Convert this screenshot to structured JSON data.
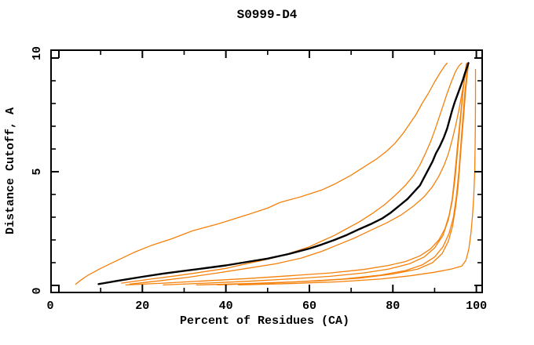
{
  "figure": {
    "background": "#ffffff"
  },
  "chart_data": {
    "type": "line",
    "title": "S0999-D4",
    "xlabel": "Percent of Residues (CA)",
    "ylabel": "Distance Cutoff, A",
    "xlim": [
      0,
      100
    ],
    "ylim": [
      0,
      10
    ],
    "grid": false,
    "legend": false,
    "x_axis": {
      "minor_ticks": [
        10,
        30,
        50,
        70,
        90
      ],
      "major_ticks": [
        0,
        20,
        40,
        60,
        80,
        100
      ],
      "tick_labels": [
        "0",
        "20",
        "40",
        "60",
        "80",
        "100"
      ]
    },
    "y_axis": {
      "minor_ticks": [
        1,
        2,
        3,
        4,
        6,
        7,
        8,
        9
      ],
      "major_ticks": [
        0,
        5,
        10
      ],
      "tick_labels": [
        "0",
        "5",
        "10"
      ]
    },
    "colors": {
      "highlight_curve": "#000000",
      "prediction_curve": "#F5800A"
    },
    "series": [
      {
        "name": "orange-curve-1",
        "color": "#F5800A",
        "width": 1.3,
        "points": [
          [
            4,
            0.05
          ],
          [
            5,
            0.2
          ],
          [
            7,
            0.45
          ],
          [
            10,
            0.75
          ],
          [
            14,
            1.1
          ],
          [
            18,
            1.45
          ],
          [
            22,
            1.75
          ],
          [
            27,
            2.05
          ],
          [
            32,
            2.4
          ],
          [
            38,
            2.7
          ],
          [
            45,
            3.1
          ],
          [
            50,
            3.4
          ],
          [
            53,
            3.65
          ],
          [
            58,
            3.9
          ],
          [
            63,
            4.2
          ],
          [
            66,
            4.45
          ],
          [
            70,
            4.85
          ],
          [
            73,
            5.2
          ],
          [
            76,
            5.55
          ],
          [
            78.5,
            5.9
          ],
          [
            80.5,
            6.25
          ],
          [
            82.5,
            6.7
          ],
          [
            84,
            7.1
          ],
          [
            85.5,
            7.5
          ],
          [
            87,
            8.0
          ],
          [
            88.5,
            8.45
          ],
          [
            90,
            8.95
          ],
          [
            91.3,
            9.35
          ],
          [
            92.4,
            9.65
          ],
          [
            93,
            9.78
          ]
        ]
      },
      {
        "name": "orange-curve-2",
        "color": "#F5800A",
        "width": 1.3,
        "points": [
          [
            15,
            0.1
          ],
          [
            22,
            0.28
          ],
          [
            28,
            0.42
          ],
          [
            34,
            0.58
          ],
          [
            40,
            0.75
          ],
          [
            45,
            0.95
          ],
          [
            50,
            1.15
          ],
          [
            55,
            1.4
          ],
          [
            60,
            1.7
          ],
          [
            63,
            1.95
          ],
          [
            66,
            2.2
          ],
          [
            69,
            2.5
          ],
          [
            72,
            2.8
          ],
          [
            75,
            3.15
          ],
          [
            78,
            3.55
          ],
          [
            80.5,
            3.95
          ],
          [
            83,
            4.4
          ],
          [
            85,
            4.85
          ],
          [
            86.5,
            5.3
          ],
          [
            87.8,
            5.8
          ],
          [
            89,
            6.3
          ],
          [
            90,
            6.8
          ],
          [
            91,
            7.35
          ],
          [
            92,
            7.9
          ],
          [
            93,
            8.45
          ],
          [
            94,
            8.95
          ],
          [
            95,
            9.4
          ],
          [
            95.8,
            9.65
          ],
          [
            96.5,
            9.78
          ]
        ]
      },
      {
        "name": "orange-curve-3",
        "color": "#F5800A",
        "width": 1.3,
        "points": [
          [
            17,
            0.06
          ],
          [
            24,
            0.2
          ],
          [
            31,
            0.36
          ],
          [
            38,
            0.55
          ],
          [
            45,
            0.75
          ],
          [
            52,
            0.95
          ],
          [
            58,
            1.2
          ],
          [
            63,
            1.5
          ],
          [
            67,
            1.8
          ],
          [
            71,
            2.1
          ],
          [
            75,
            2.45
          ],
          [
            78.5,
            2.75
          ],
          [
            82,
            3.1
          ],
          [
            85,
            3.5
          ],
          [
            87.5,
            3.9
          ],
          [
            89.5,
            4.35
          ],
          [
            91,
            4.8
          ],
          [
            92.3,
            5.3
          ],
          [
            93.3,
            5.8
          ],
          [
            94.2,
            6.4
          ],
          [
            95,
            7.0
          ],
          [
            95.8,
            7.7
          ],
          [
            96.5,
            8.4
          ],
          [
            97.2,
            9.1
          ],
          [
            97.8,
            9.6
          ],
          [
            98.1,
            9.78
          ]
        ]
      },
      {
        "name": "orange-curve-4",
        "color": "#F5800A",
        "width": 1.3,
        "points": [
          [
            16,
            0.02
          ],
          [
            25,
            0.1
          ],
          [
            35,
            0.2
          ],
          [
            45,
            0.3
          ],
          [
            55,
            0.42
          ],
          [
            65,
            0.55
          ],
          [
            73,
            0.7
          ],
          [
            79,
            0.88
          ],
          [
            83,
            1.05
          ],
          [
            86.5,
            1.3
          ],
          [
            89,
            1.6
          ],
          [
            91,
            2.0
          ],
          [
            92.5,
            2.5
          ],
          [
            93.5,
            3.1
          ],
          [
            94.2,
            3.8
          ],
          [
            94.7,
            4.6
          ],
          [
            95.1,
            5.4
          ],
          [
            95.5,
            6.2
          ],
          [
            96,
            7.1
          ],
          [
            96.5,
            8.0
          ],
          [
            97,
            8.9
          ],
          [
            97.5,
            9.6
          ],
          [
            97.7,
            9.78
          ]
        ]
      },
      {
        "name": "orange-curve-5",
        "color": "#F5800A",
        "width": 1.3,
        "points": [
          [
            25,
            0.02
          ],
          [
            35,
            0.1
          ],
          [
            45,
            0.18
          ],
          [
            55,
            0.28
          ],
          [
            65,
            0.4
          ],
          [
            73,
            0.55
          ],
          [
            79,
            0.72
          ],
          [
            84,
            0.95
          ],
          [
            87.5,
            1.25
          ],
          [
            90,
            1.65
          ],
          [
            92,
            2.2
          ],
          [
            93.3,
            2.9
          ],
          [
            94.2,
            3.7
          ],
          [
            94.9,
            4.7
          ],
          [
            95.4,
            5.7
          ],
          [
            95.9,
            6.7
          ],
          [
            96.4,
            7.7
          ],
          [
            96.9,
            8.7
          ],
          [
            97.4,
            9.5
          ],
          [
            97.6,
            9.75
          ]
        ]
      },
      {
        "name": "orange-curve-6",
        "color": "#F5800A",
        "width": 1.3,
        "points": [
          [
            33,
            0.02
          ],
          [
            45,
            0.08
          ],
          [
            57,
            0.16
          ],
          [
            68,
            0.28
          ],
          [
            77,
            0.45
          ],
          [
            83,
            0.65
          ],
          [
            87,
            0.9
          ],
          [
            90,
            1.25
          ],
          [
            92,
            1.7
          ],
          [
            93.5,
            2.3
          ],
          [
            94.5,
            3.0
          ],
          [
            95.2,
            3.9
          ],
          [
            95.8,
            5.0
          ],
          [
            96.2,
            6.0
          ],
          [
            96.7,
            7.2
          ],
          [
            97.2,
            8.4
          ],
          [
            97.7,
            9.3
          ],
          [
            98,
            9.7
          ]
        ]
      },
      {
        "name": "orange-curve-7",
        "color": "#F5800A",
        "width": 1.3,
        "points": [
          [
            38,
            0.02
          ],
          [
            50,
            0.1
          ],
          [
            62,
            0.2
          ],
          [
            72,
            0.32
          ],
          [
            80,
            0.5
          ],
          [
            86,
            0.72
          ],
          [
            89.5,
            1.0
          ],
          [
            91.8,
            1.4
          ],
          [
            93.3,
            1.95
          ],
          [
            94.3,
            2.6
          ],
          [
            95,
            3.4
          ],
          [
            95.6,
            4.3
          ],
          [
            96,
            5.2
          ],
          [
            96.4,
            6.2
          ],
          [
            96.9,
            7.3
          ],
          [
            97.4,
            8.5
          ],
          [
            97.9,
            9.4
          ],
          [
            98.1,
            9.7
          ]
        ]
      },
      {
        "name": "orange-curve-8",
        "color": "#F5800A",
        "width": 1.3,
        "points": [
          [
            43,
            0.02
          ],
          [
            55,
            0.08
          ],
          [
            67,
            0.16
          ],
          [
            77,
            0.28
          ],
          [
            84,
            0.42
          ],
          [
            90,
            0.58
          ],
          [
            94,
            0.72
          ],
          [
            96.5,
            0.85
          ],
          [
            97.5,
            1.1
          ],
          [
            98.2,
            1.6
          ],
          [
            98.7,
            2.3
          ],
          [
            99.1,
            3.1
          ],
          [
            99.4,
            4.0
          ],
          [
            99.6,
            5.0
          ],
          [
            99.7,
            6.0
          ],
          [
            99.75,
            7.0
          ],
          [
            99.8,
            8.2
          ],
          [
            99.8,
            9.5
          ]
        ]
      },
      {
        "name": "black-curve",
        "color": "#000000",
        "width": 2.4,
        "points": [
          [
            9.5,
            0.06
          ],
          [
            14,
            0.2
          ],
          [
            20,
            0.38
          ],
          [
            25,
            0.52
          ],
          [
            30,
            0.64
          ],
          [
            35,
            0.76
          ],
          [
            40,
            0.88
          ],
          [
            44,
            1.0
          ],
          [
            50,
            1.18
          ],
          [
            55,
            1.38
          ],
          [
            60,
            1.62
          ],
          [
            63,
            1.8
          ],
          [
            66,
            2.0
          ],
          [
            69,
            2.22
          ],
          [
            72,
            2.48
          ],
          [
            75,
            2.72
          ],
          [
            77.5,
            2.95
          ],
          [
            79.5,
            3.2
          ],
          [
            81.5,
            3.5
          ],
          [
            83.5,
            3.8
          ],
          [
            85,
            4.1
          ],
          [
            86.5,
            4.4
          ],
          [
            87.5,
            4.75
          ],
          [
            88.5,
            5.1
          ],
          [
            89.5,
            5.45
          ],
          [
            90.3,
            5.8
          ],
          [
            91.2,
            6.1
          ],
          [
            92.2,
            6.5
          ],
          [
            93,
            6.9
          ],
          [
            93.6,
            7.3
          ],
          [
            94.2,
            7.7
          ],
          [
            94.8,
            8.05
          ],
          [
            95.5,
            8.4
          ],
          [
            96.2,
            8.75
          ],
          [
            96.8,
            9.05
          ],
          [
            97.3,
            9.35
          ],
          [
            97.8,
            9.6
          ],
          [
            98.1,
            9.78
          ]
        ]
      }
    ]
  }
}
